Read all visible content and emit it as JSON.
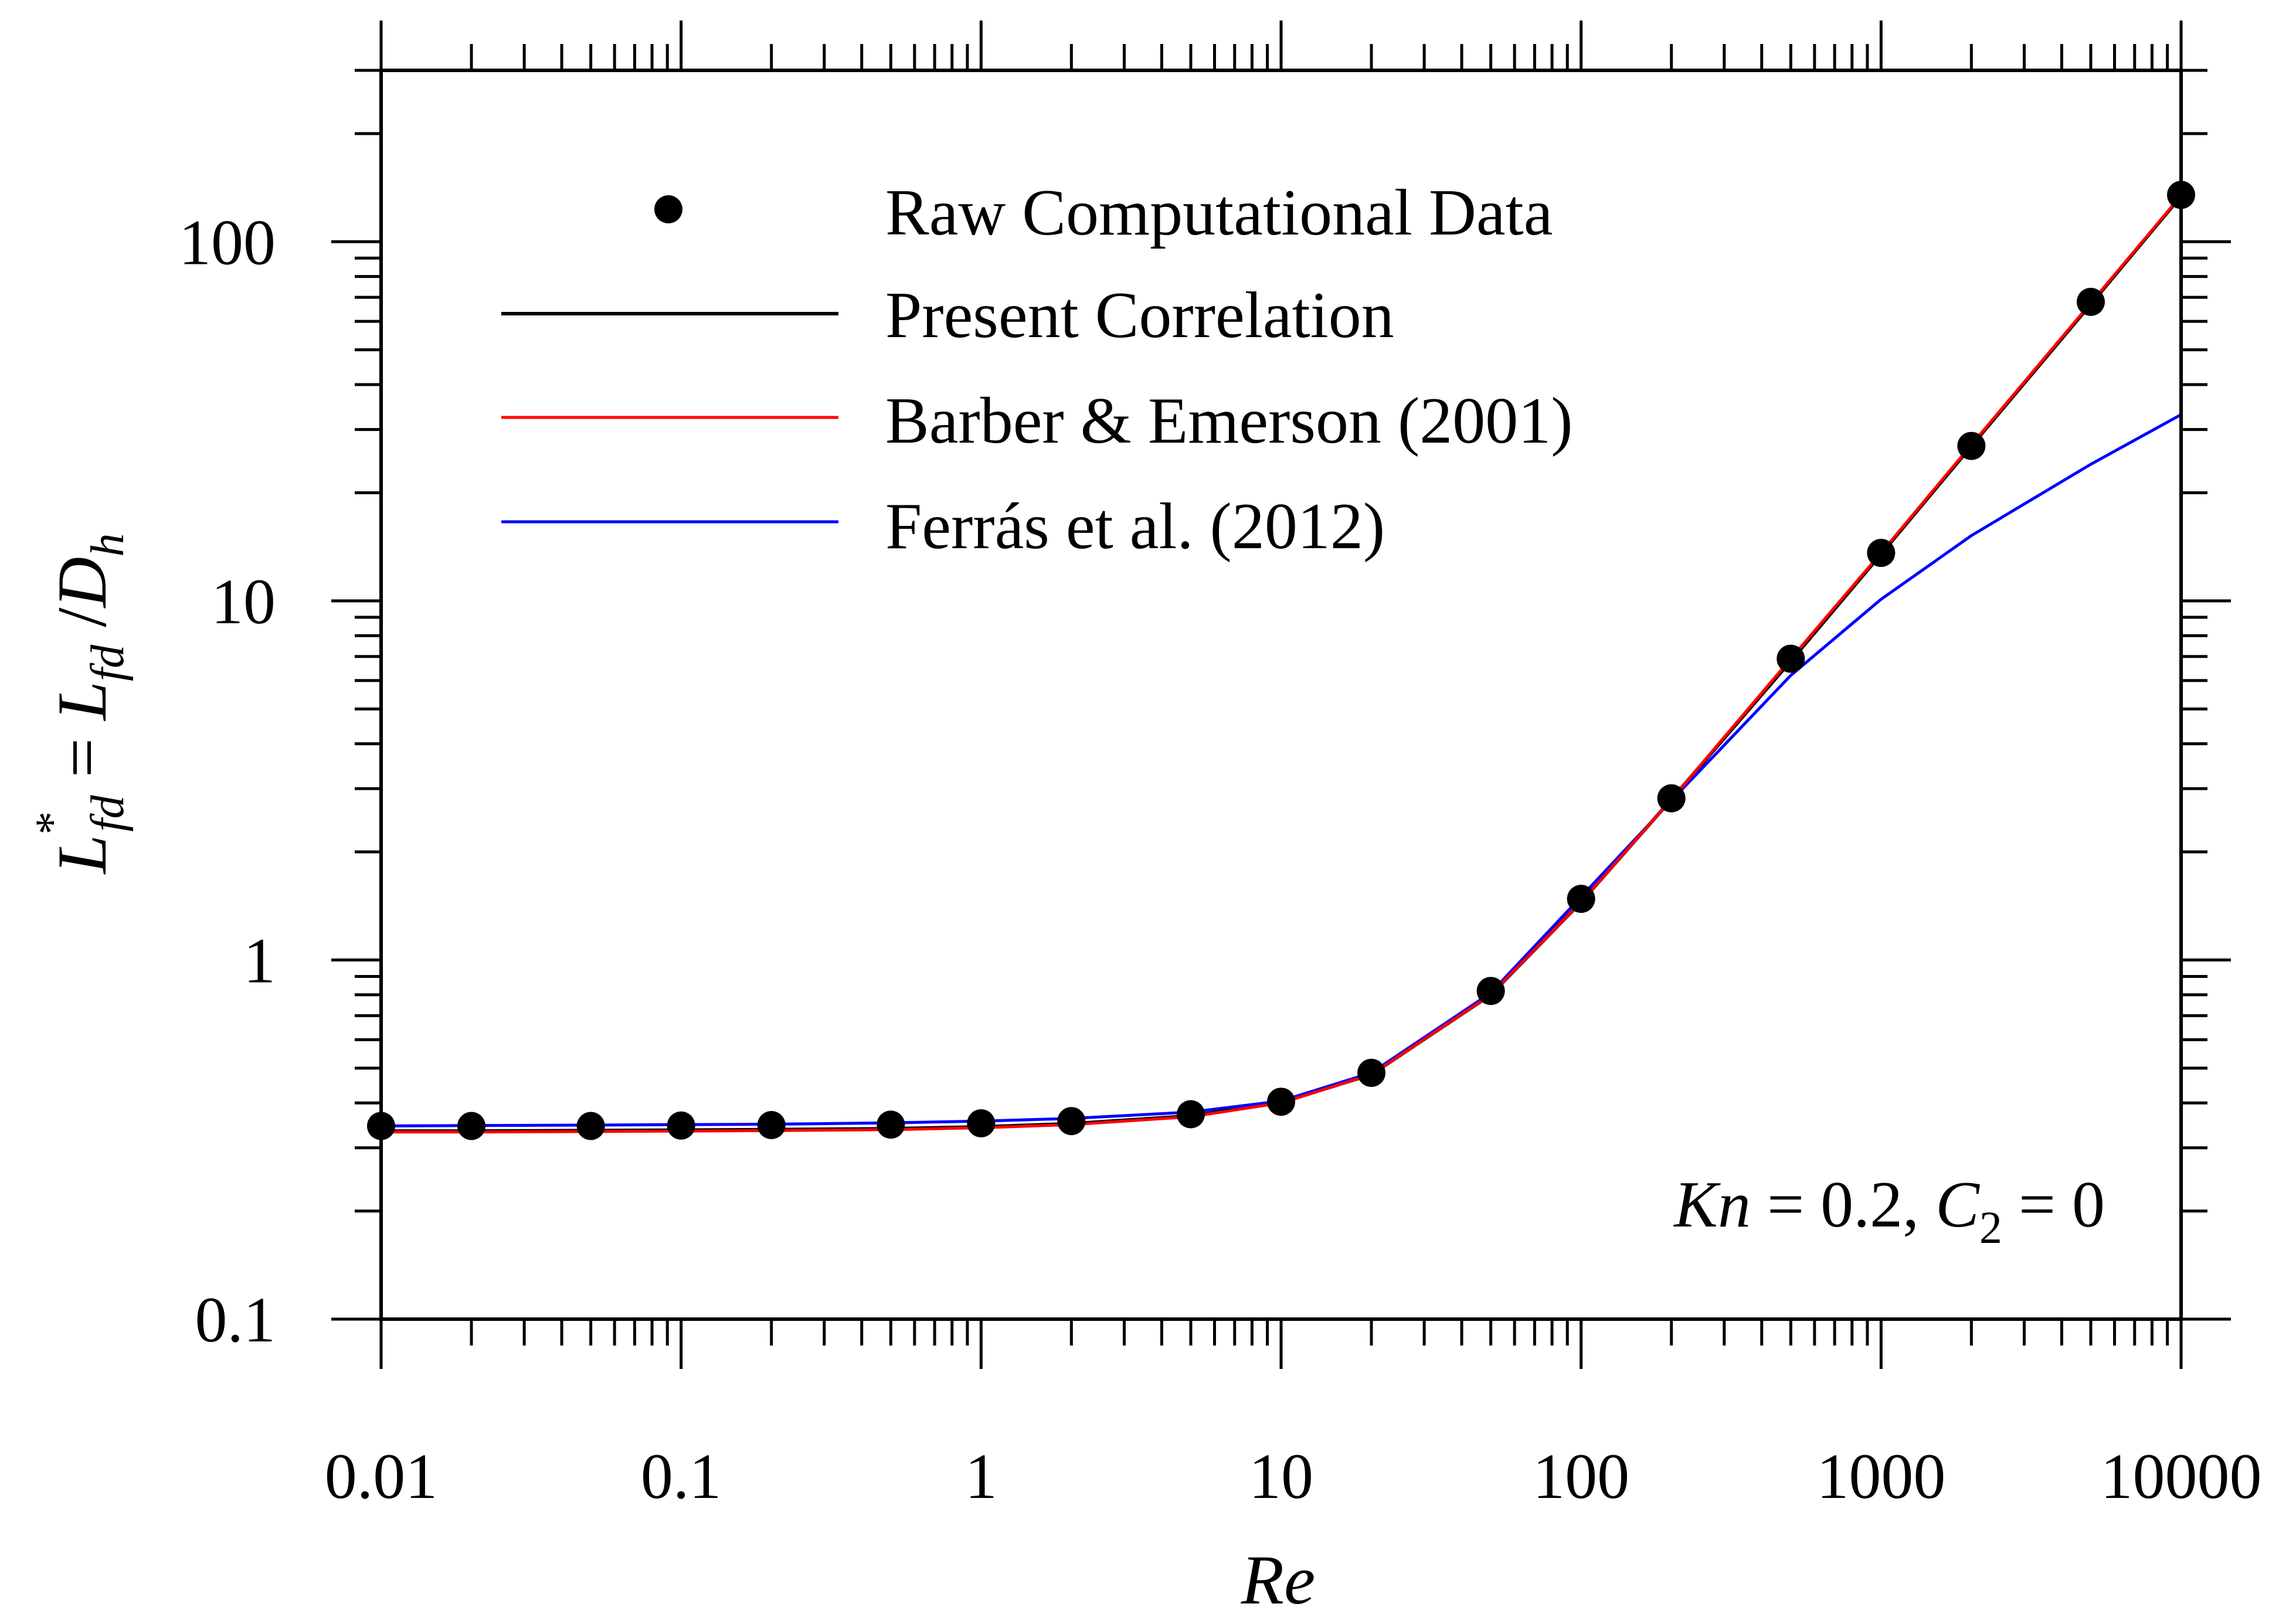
{
  "chart_data": {
    "type": "line",
    "xscale": "log",
    "yscale": "log",
    "xlim": [
      0.01,
      10000
    ],
    "ylim": [
      0.1,
      300
    ],
    "xlabel": "Re",
    "ylabel": {
      "L": "L",
      "star": "*",
      "fd": "fd",
      "eq": " = ",
      "slash": " /",
      "D": "D",
      "h": "h"
    },
    "x_ticks": [
      0.01,
      0.1,
      1,
      10,
      100,
      1000,
      10000
    ],
    "x_tick_labels": [
      "0.01",
      "0.1",
      "1",
      "10",
      "100",
      "1000",
      "10000"
    ],
    "y_ticks": [
      0.1,
      1,
      10,
      100
    ],
    "y_tick_labels": [
      "0.1",
      "1",
      "10",
      "100"
    ],
    "annotation": {
      "kn": "Kn",
      "kn_value": " = 0.2, ",
      "c": "C",
      "c_sub": "2",
      "c_value": " = 0"
    },
    "colors": {
      "raw": "#000000",
      "present": "#000000",
      "barber": "#ff0000",
      "ferras": "#0000ff"
    },
    "series": [
      {
        "name": "Raw Computational Data",
        "style": "markers",
        "x": [
          0.01,
          0.02,
          0.05,
          0.1,
          0.2,
          0.5,
          1,
          2,
          5,
          10,
          20,
          50,
          100,
          200,
          500,
          1000,
          2000,
          5000,
          10000
        ],
        "y": [
          0.345,
          0.345,
          0.345,
          0.346,
          0.347,
          0.348,
          0.351,
          0.356,
          0.372,
          0.403,
          0.485,
          0.82,
          1.48,
          2.82,
          6.9,
          13.6,
          27,
          68,
          135
        ]
      },
      {
        "name": "Present Correlation",
        "style": "line",
        "x": [
          0.01,
          0.02,
          0.05,
          0.1,
          0.2,
          0.5,
          1,
          2,
          5,
          10,
          20,
          50,
          100,
          200,
          500,
          1000,
          2000,
          5000,
          10000
        ],
        "y": [
          0.334,
          0.334,
          0.335,
          0.336,
          0.337,
          0.339,
          0.343,
          0.35,
          0.368,
          0.401,
          0.48,
          0.8,
          1.45,
          2.8,
          6.8,
          13.5,
          27,
          67,
          134
        ]
      },
      {
        "name": "Barber & Emerson (2001)",
        "style": "line",
        "x": [
          0.01,
          0.02,
          0.05,
          0.1,
          0.2,
          0.5,
          1,
          2,
          5,
          10,
          20,
          50,
          100,
          200,
          500,
          1000,
          2000,
          5000,
          10000
        ],
        "y": [
          0.332,
          0.332,
          0.333,
          0.334,
          0.335,
          0.337,
          0.341,
          0.348,
          0.366,
          0.4,
          0.48,
          0.8,
          1.45,
          2.8,
          6.9,
          13.6,
          27.2,
          67.5,
          134.5
        ]
      },
      {
        "name": "Ferrás et al. (2012)",
        "style": "line",
        "x": [
          0.01,
          0.02,
          0.05,
          0.1,
          0.2,
          0.5,
          1,
          2,
          5,
          10,
          20,
          50,
          100,
          200,
          500,
          1000,
          2000,
          5000,
          10000
        ],
        "y": [
          0.345,
          0.346,
          0.347,
          0.348,
          0.349,
          0.352,
          0.356,
          0.362,
          0.377,
          0.405,
          0.485,
          0.81,
          1.5,
          2.78,
          6.2,
          10.1,
          15.2,
          24,
          33
        ]
      }
    ]
  }
}
